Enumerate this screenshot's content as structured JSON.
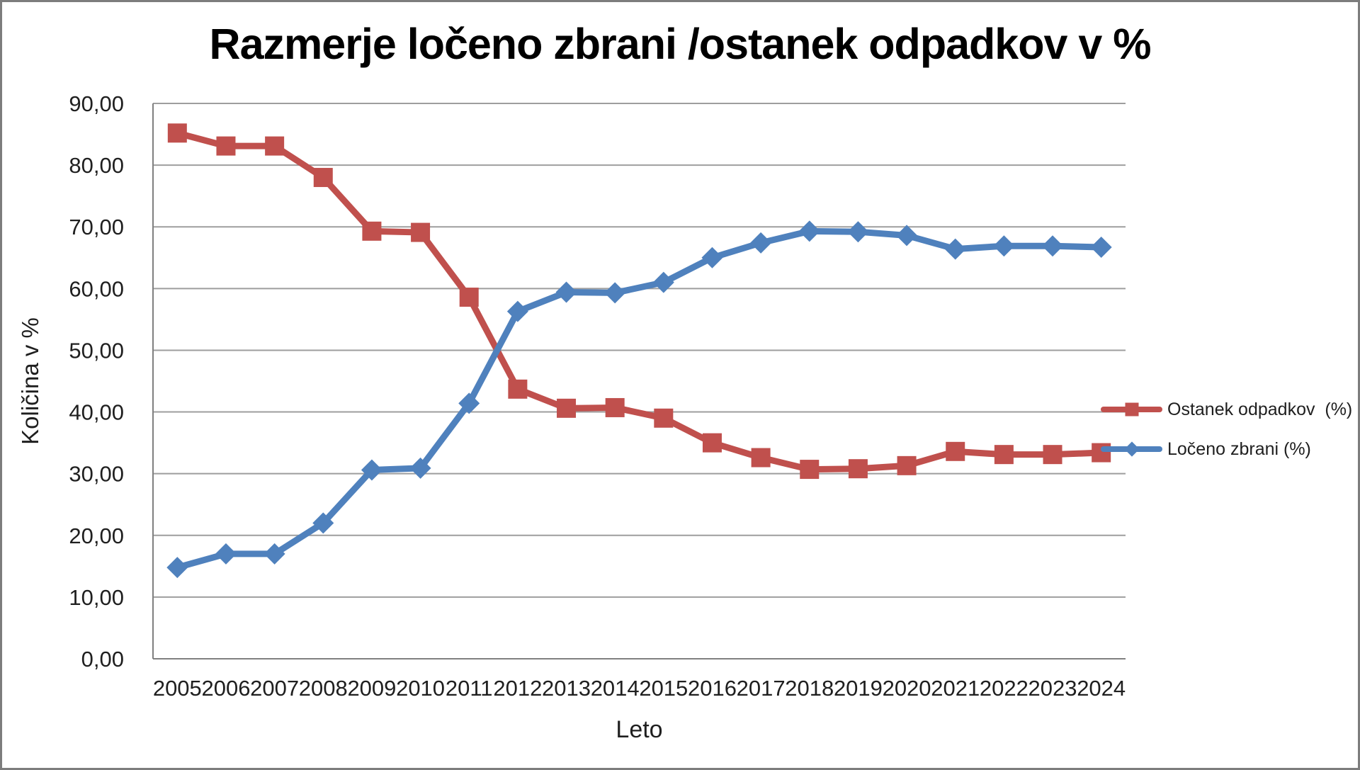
{
  "chart_data": {
    "type": "line",
    "title": "Razmerje ločeno zbrani /ostanek odpadkov v %",
    "xlabel": "Leto",
    "ylabel": "Količina v %",
    "ylim": [
      0,
      90
    ],
    "grid": true,
    "legend_position": "right",
    "y_ticks": [
      {
        "value": 0,
        "label": "0,00"
      },
      {
        "value": 10,
        "label": "10,00"
      },
      {
        "value": 20,
        "label": "20,00"
      },
      {
        "value": 30,
        "label": "30,00"
      },
      {
        "value": 40,
        "label": "40,00"
      },
      {
        "value": 50,
        "label": "50,00"
      },
      {
        "value": 60,
        "label": "60,00"
      },
      {
        "value": 70,
        "label": "70,00"
      },
      {
        "value": 80,
        "label": "80,00"
      },
      {
        "value": 90,
        "label": "90,00"
      }
    ],
    "categories": [
      "2005",
      "2006",
      "2007",
      "2008",
      "2009",
      "2010",
      "2011",
      "2012",
      "2013",
      "2014",
      "2015",
      "2016",
      "2017",
      "2018",
      "2019",
      "2020",
      "2021",
      "2022",
      "2023",
      "2024"
    ],
    "series": [
      {
        "name": "Ostanek odpadkov  (%)",
        "color": "#C0504D",
        "marker": "square",
        "values": [
          85.2,
          83.1,
          83.1,
          78.0,
          69.3,
          69.1,
          58.6,
          43.7,
          40.6,
          40.7,
          39.0,
          35.0,
          32.6,
          30.7,
          30.8,
          31.3,
          33.6,
          33.1,
          33.1,
          33.4
        ]
      },
      {
        "name": "Ločeno zbrani (%)",
        "color": "#4F81BD",
        "marker": "diamond",
        "values": [
          14.8,
          17.0,
          17.0,
          22.0,
          30.6,
          30.9,
          41.4,
          56.3,
          59.4,
          59.3,
          61.0,
          65.0,
          67.4,
          69.3,
          69.2,
          68.6,
          66.4,
          66.9,
          66.9,
          66.7
        ]
      }
    ],
    "colors": {
      "gridline": "#9e9e9e",
      "axis": "#808080",
      "text": "#1f1f1f",
      "background": "#ffffff",
      "frame_border": "#7d7d7d"
    }
  }
}
